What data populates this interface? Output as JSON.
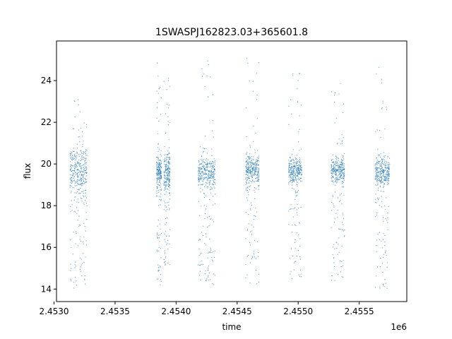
{
  "chart_data": {
    "type": "scatter",
    "title": "1SWASPJ162823.03+365601.8",
    "xlabel": "time",
    "ylabel": "flux",
    "x_offset_label": "1e6",
    "xlim": [
      2.45302,
      2.45589
    ],
    "ylim": [
      13.4,
      25.9
    ],
    "x_ticks": [
      2.453,
      2.4535,
      2.454,
      2.4545,
      2.455,
      2.4555
    ],
    "x_tick_labels": [
      "2.4530",
      "2.4535",
      "2.4540",
      "2.4545",
      "2.4550",
      "2.4555"
    ],
    "y_ticks": [
      14,
      16,
      18,
      20,
      22,
      24
    ],
    "y_tick_labels": [
      "14",
      "16",
      "18",
      "20",
      "22",
      "24"
    ],
    "grid": false,
    "marker_color": "#1f77b4",
    "series": [
      {
        "segments": [
          {
            "x_start": 2.45313,
            "x_end": 2.45327,
            "center": 19.7,
            "spread": 0.6,
            "low": 14.0,
            "high": 23.2
          },
          {
            "x_start": 2.45384,
            "x_end": 2.45388,
            "center": 19.6,
            "spread": 0.45,
            "low": 14.0,
            "high": 24.9
          },
          {
            "x_start": 2.4539,
            "x_end": 2.45395,
            "center": 19.6,
            "spread": 0.5,
            "low": 15.0,
            "high": 24.4
          },
          {
            "x_start": 2.45418,
            "x_end": 2.45432,
            "center": 19.6,
            "spread": 0.35,
            "low": 14.2,
            "high": 25.2
          },
          {
            "x_start": 2.45457,
            "x_end": 2.45468,
            "center": 19.7,
            "spread": 0.35,
            "low": 14.1,
            "high": 25.3
          },
          {
            "x_start": 2.45492,
            "x_end": 2.45503,
            "center": 19.7,
            "spread": 0.3,
            "low": 14.2,
            "high": 24.4
          },
          {
            "x_start": 2.45527,
            "x_end": 2.45538,
            "center": 19.7,
            "spread": 0.3,
            "low": 14.4,
            "high": 24.3
          },
          {
            "x_start": 2.45563,
            "x_end": 2.45575,
            "center": 19.6,
            "spread": 0.35,
            "low": 14.0,
            "high": 24.8
          }
        ]
      }
    ]
  }
}
